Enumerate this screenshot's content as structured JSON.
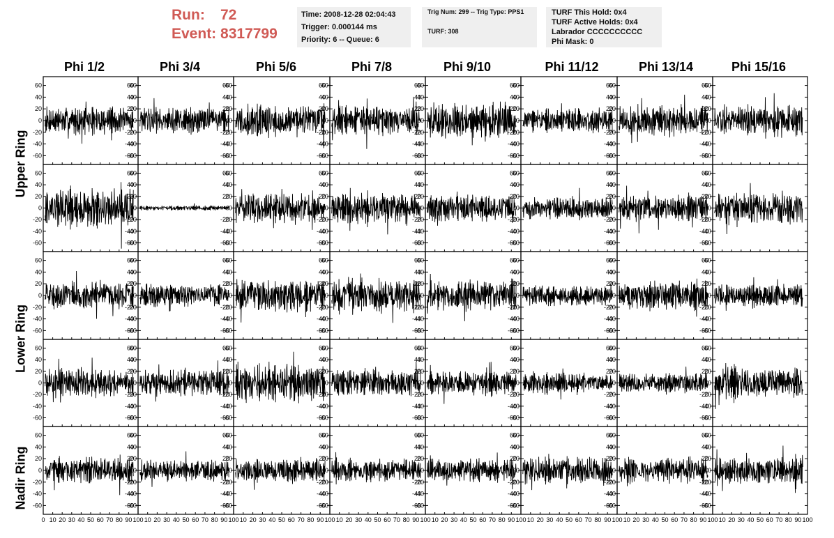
{
  "header": {
    "run_label": "Run:",
    "run_value": "72",
    "event_label": "Event:",
    "event_value": "8317799",
    "colors": {
      "run_text": "#d05a55",
      "info_bg": "#efefef"
    }
  },
  "info_box_1": {
    "time": "Time: 2008-12-28 02:04:43",
    "trigger": "Trigger: 0.000144 ms",
    "priority": "Priority: 6 -- Queue: 6"
  },
  "info_box_2": {
    "trig": "Trig Num: 299 -- Trig Type: PPS1",
    "turf": "TURF: 308"
  },
  "info_box_3": {
    "this_hold": "TURF This Hold: 0x4",
    "active_holds": "TURF Active Holds: 0x4",
    "labrador": "Labrador CCCCCCCCCC",
    "phi_mask": "Phi Mask: 0"
  },
  "chart_data": {
    "type": "line",
    "columns": [
      "Phi 1/2",
      "Phi 3/4",
      "Phi 5/6",
      "Phi 7/8",
      "Phi 9/10",
      "Phi 11/12",
      "Phi 13/14",
      "Phi 15/16"
    ],
    "rows": [
      "Upper Ring",
      "Upper Ring",
      "Lower Ring",
      "Lower Ring",
      "Nadir Ring"
    ],
    "row_labels_shown": [
      "Upper Ring",
      "Lower Ring",
      "Nadir Ring"
    ],
    "xlim": [
      0,
      100
    ],
    "ylim": [
      -75,
      75
    ],
    "y_ticks": [
      -60,
      -40,
      -20,
      0,
      20,
      40,
      60
    ],
    "x_ticks": [
      0,
      10,
      20,
      30,
      40,
      50,
      60,
      70,
      80,
      90,
      100
    ],
    "x_tick_labels_bottom": "0 10 20 30 40 50 60 70 80 90 100",
    "grid": false,
    "line_color": "#000000",
    "panel_amplitudes": [
      [
        12,
        12,
        14,
        13,
        16,
        10,
        13,
        13
      ],
      [
        18,
        2,
        13,
        14,
        12,
        10,
        12,
        15
      ],
      [
        12,
        10,
        14,
        15,
        13,
        9,
        13,
        10
      ],
      [
        12,
        12,
        17,
        12,
        10,
        9,
        9,
        13
      ],
      [
        11,
        9,
        10,
        10,
        10,
        12,
        11,
        12
      ]
    ]
  }
}
